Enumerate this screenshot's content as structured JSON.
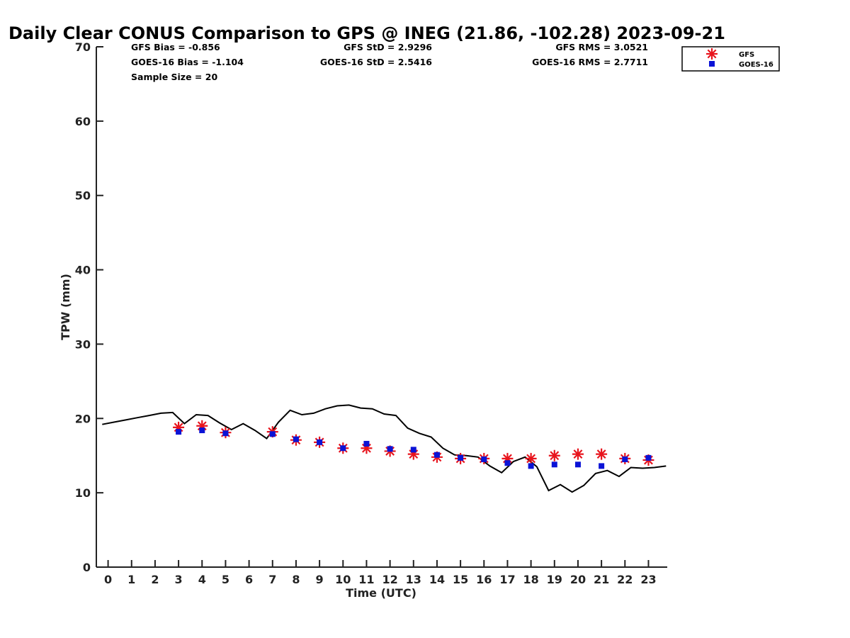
{
  "chart_data": {
    "type": "line",
    "title": "Daily Clear CONUS Comparison to GPS @ INEG (21.86, -102.28) 2023-09-21",
    "xlabel": "Time (UTC)",
    "ylabel": "TPW (mm)",
    "xlim": [
      -0.5,
      23.8
    ],
    "ylim": [
      0,
      70
    ],
    "x_ticks": [
      "0",
      "1",
      "2",
      "3",
      "4",
      "5",
      "6",
      "7",
      "8",
      "9",
      "10",
      "11",
      "12",
      "13",
      "14",
      "15",
      "16",
      "17",
      "18",
      "19",
      "20",
      "21",
      "22",
      "23"
    ],
    "y_ticks": [
      "0",
      "10",
      "20",
      "30",
      "40",
      "50",
      "60",
      "70"
    ],
    "grid": false,
    "legend_position": "top-right",
    "stats": {
      "gfs_bias": "GFS Bias = -0.856",
      "goes_bias": "GOES-16 Bias = -1.104",
      "sample_size": "Sample Size = 20",
      "gfs_std": "GFS StD = 2.9296",
      "goes_std": "GOES-16 StD = 2.5416",
      "gfs_rms": "GFS RMS = 3.0521",
      "goes_rms": "GOES-16 RMS = 2.7711"
    },
    "series": [
      {
        "kind": "line",
        "color": "#000000",
        "x": [
          -0.25,
          0.25,
          0.75,
          1.25,
          1.75,
          2.25,
          2.75,
          3.25,
          3.75,
          4.25,
          4.75,
          5.25,
          5.75,
          6.25,
          6.75,
          7.25,
          7.75,
          8.25,
          8.75,
          9.25,
          9.75,
          10.25,
          10.75,
          11.25,
          11.75,
          12.25,
          12.75,
          13.25,
          13.75,
          14.25,
          14.75,
          15.25,
          15.75,
          16.25,
          16.75,
          17.25,
          17.75,
          18.25,
          18.75,
          19.25,
          19.75,
          20.25,
          20.75,
          21.25,
          21.75,
          22.25,
          22.75,
          23.25,
          23.75
        ],
        "y": [
          19.2,
          19.5,
          19.8,
          20.1,
          20.4,
          20.7,
          20.8,
          19.3,
          20.5,
          20.4,
          19.4,
          18.5,
          19.3,
          18.4,
          17.3,
          19.5,
          21.1,
          20.5,
          20.7,
          21.3,
          21.7,
          21.8,
          21.4,
          21.3,
          20.6,
          20.4,
          18.7,
          18.0,
          17.5,
          16.0,
          15.1,
          15.0,
          14.8,
          13.6,
          12.7,
          14.2,
          14.8,
          13.5,
          10.3,
          11.1,
          10.1,
          11.0,
          12.6,
          13.0,
          12.2,
          13.4,
          13.3,
          13.4,
          13.6
        ]
      },
      {
        "name": "GFS",
        "kind": "scatter",
        "marker": "asterisk",
        "color": "#e8141d",
        "x": [
          3,
          4,
          5,
          7,
          8,
          9,
          10,
          11,
          12,
          13,
          14,
          15,
          16,
          17,
          18,
          19,
          20,
          21,
          22,
          23
        ],
        "y": [
          18.8,
          19.0,
          18.1,
          18.2,
          17.1,
          16.8,
          16.0,
          16.0,
          15.6,
          15.2,
          14.8,
          14.6,
          14.6,
          14.6,
          14.6,
          15.0,
          15.2,
          15.2,
          14.6,
          14.4
        ]
      },
      {
        "name": "GOES-16",
        "kind": "scatter",
        "marker": "square",
        "color": "#0b13d6",
        "x": [
          3,
          4,
          5,
          7,
          8,
          9,
          10,
          11,
          12,
          13,
          14,
          15,
          16,
          17,
          18,
          19,
          20,
          21,
          22,
          23
        ],
        "y": [
          18.2,
          18.4,
          18.0,
          17.9,
          17.2,
          16.8,
          16.0,
          16.6,
          15.9,
          15.8,
          15.1,
          14.7,
          14.5,
          14.0,
          13.6,
          13.8,
          13.8,
          13.6,
          14.5,
          14.7
        ]
      }
    ]
  }
}
